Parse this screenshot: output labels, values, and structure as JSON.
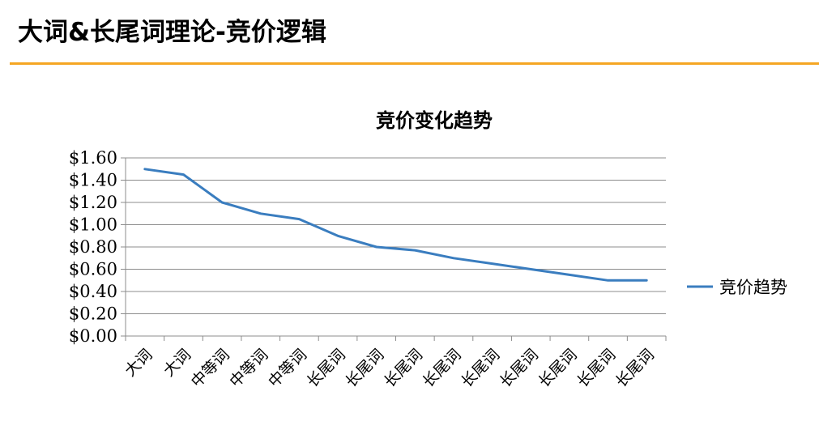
{
  "page": {
    "title": "大词&长尾词理论-竞价逻辑",
    "accent_color": "#F5A623"
  },
  "chart_data": {
    "type": "line",
    "title": "竞价变化趋势",
    "categories": [
      "大词",
      "大词",
      "中等词",
      "中等词",
      "中等词",
      "长尾词",
      "长尾词",
      "长尾词",
      "长尾词",
      "长尾词",
      "长尾词",
      "长尾词",
      "长尾词",
      "长尾词"
    ],
    "series": [
      {
        "name": "竞价趋势",
        "color": "#3A7DBF",
        "values": [
          1.5,
          1.45,
          1.2,
          1.1,
          1.05,
          0.9,
          0.8,
          0.77,
          0.7,
          0.65,
          0.6,
          0.55,
          0.5,
          0.5
        ]
      }
    ],
    "ylim": [
      0,
      1.6
    ],
    "yticks": [
      "$0.00",
      "$0.20",
      "$0.40",
      "$0.60",
      "$0.80",
      "$1.00",
      "$1.20",
      "$1.40",
      "$1.60"
    ],
    "grid": true,
    "legend_position": "right"
  }
}
